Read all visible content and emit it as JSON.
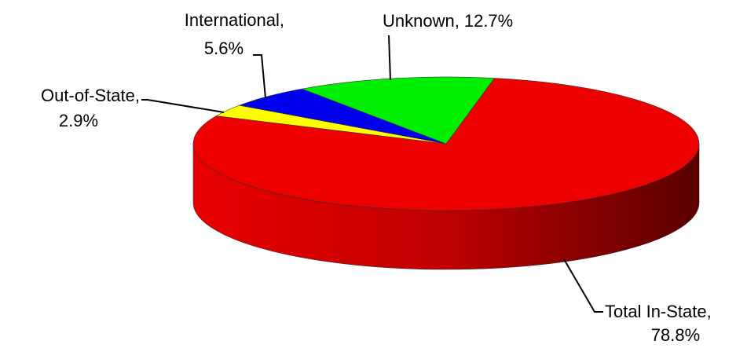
{
  "chart_data": {
    "type": "pie",
    "categories": [
      "Total In-State,",
      "Out-of-State,",
      "International,",
      "Unknown,"
    ],
    "values": [
      78.8,
      2.9,
      5.6,
      12.7
    ],
    "value_labels": [
      "78.8%",
      "2.9%",
      "5.6%",
      "12.7%"
    ],
    "colors": [
      "#ee0000",
      "#ffff00",
      "#0000ee",
      "#00ee00"
    ]
  }
}
